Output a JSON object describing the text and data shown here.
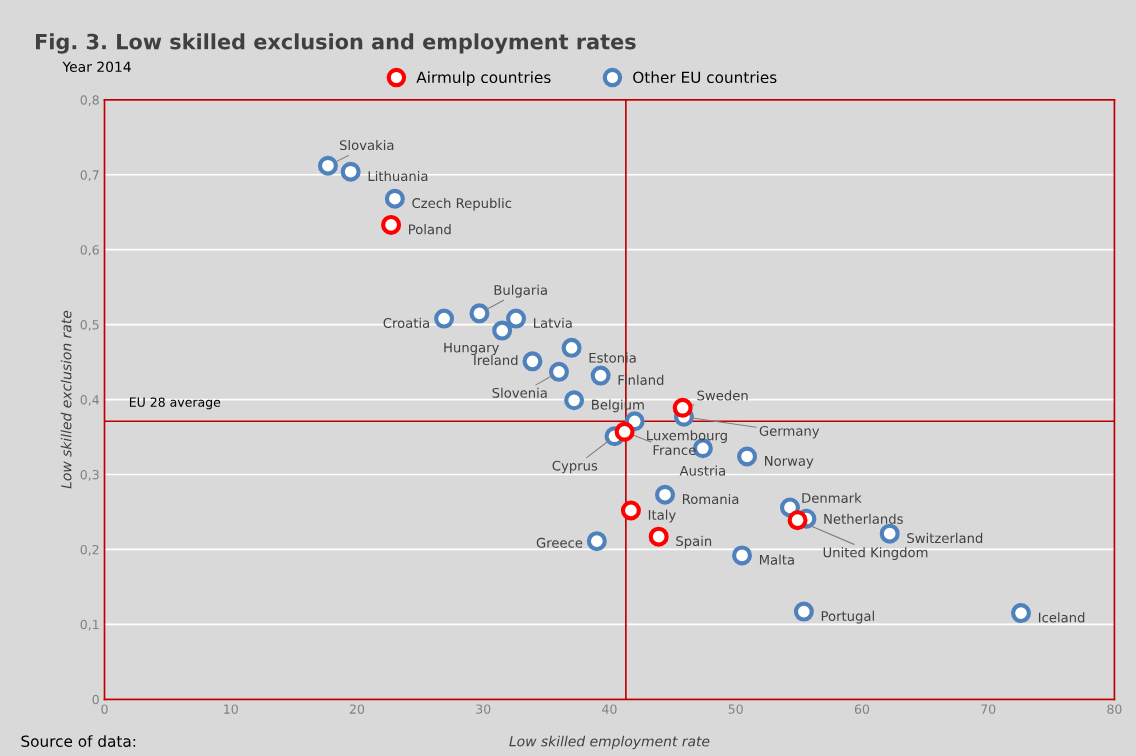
{
  "chart_data": {
    "type": "scatter",
    "title": "Fig. 3. Low skilled exclusion and employment rates",
    "subtitle": "Year 2014",
    "xlabel": "Low skilled employment rate",
    "ylabel": "Low skilled exclusion rate",
    "series": [
      {
        "name": "Airmulp countries",
        "color": "#ff0000",
        "x": [
          22.7,
          45.8,
          41.2,
          41.7,
          43.9,
          54.9
        ],
        "values": [
          0.633,
          0.389,
          0.357,
          0.252,
          0.217,
          0.239
        ]
      },
      {
        "name": "Other EU countries",
        "color": "#4f81bd",
        "x": [
          17.7,
          19.5,
          23.0,
          26.9,
          29.7,
          32.6,
          31.5,
          37.0,
          33.9,
          36.0,
          39.3,
          37.2,
          42.0,
          45.9,
          40.4,
          47.4,
          50.9,
          44.4,
          39.0,
          50.5,
          54.3,
          55.6,
          62.2,
          55.4,
          72.6
        ],
        "values": [
          0.712,
          0.704,
          0.668,
          0.508,
          0.515,
          0.508,
          0.492,
          0.469,
          0.451,
          0.437,
          0.432,
          0.399,
          0.371,
          0.377,
          0.351,
          0.335,
          0.324,
          0.273,
          0.211,
          0.192,
          0.256,
          0.241,
          0.221,
          0.117,
          0.115
        ]
      }
    ],
    "xlim": [
      0,
      80
    ],
    "ylim": [
      0,
      0.8
    ],
    "xticks": [
      0,
      10,
      20,
      30,
      40,
      50,
      60,
      70,
      80
    ],
    "yticks": [
      0,
      {
        "value": 0.1,
        "label": "0,1"
      },
      {
        "value": 0.2,
        "label": "0,2"
      },
      {
        "value": 0.3,
        "label": "0,3"
      },
      {
        "value": 0.4,
        "label": "0,4"
      },
      {
        "value": 0.5,
        "label": "0,5"
      },
      {
        "value": 0.6,
        "label": "0,6"
      },
      {
        "value": 0.7,
        "label": "0,7"
      },
      {
        "value": 0.8,
        "label": "0,8"
      }
    ],
    "ref_lines": [
      {
        "axis": "x",
        "value": 41.3,
        "color": "#c00000"
      },
      {
        "axis": "y",
        "value": 0.371,
        "label": "EU 28 average",
        "color": "#c00000"
      }
    ],
    "grid": "y",
    "legend": "top",
    "marker": "circle",
    "annotations": [
      {
        "text": "Slovakia",
        "x": 17.7,
        "y": 0.712
      },
      {
        "text": "Lithuania",
        "x": 19.5,
        "y": 0.704
      },
      {
        "text": "Czech Republic",
        "x": 23.0,
        "y": 0.668
      },
      {
        "text": "Poland",
        "x": 22.7,
        "y": 0.633
      },
      {
        "text": "Croatia",
        "x": 26.9,
        "y": 0.508
      },
      {
        "text": "Bulgaria",
        "x": 29.7,
        "y": 0.515
      },
      {
        "text": "Latvia",
        "x": 32.6,
        "y": 0.508
      },
      {
        "text": "Hungary",
        "x": 31.5,
        "y": 0.492
      },
      {
        "text": "Estonia",
        "x": 37.0,
        "y": 0.469
      },
      {
        "text": "Ireland",
        "x": 33.9,
        "y": 0.451
      },
      {
        "text": "Slovenia",
        "x": 36.0,
        "y": 0.437
      },
      {
        "text": "Finland",
        "x": 39.3,
        "y": 0.432
      },
      {
        "text": "Belgium",
        "x": 37.2,
        "y": 0.399
      },
      {
        "text": "Sweden",
        "x": 45.8,
        "y": 0.389
      },
      {
        "text": "Luxembourg",
        "x": 42.0,
        "y": 0.371
      },
      {
        "text": "Germany",
        "x": 45.9,
        "y": 0.377
      },
      {
        "text": "France",
        "x": 41.2,
        "y": 0.357
      },
      {
        "text": "Cyprus",
        "x": 40.4,
        "y": 0.351
      },
      {
        "text": "Austria",
        "x": 47.4,
        "y": 0.335
      },
      {
        "text": "Norway",
        "x": 50.9,
        "y": 0.324
      },
      {
        "text": "Romania",
        "x": 44.4,
        "y": 0.273
      },
      {
        "text": "Italy",
        "x": 41.7,
        "y": 0.252
      },
      {
        "text": "Denmark",
        "x": 54.3,
        "y": 0.256
      },
      {
        "text": "Netherlands",
        "x": 55.6,
        "y": 0.241
      },
      {
        "text": "Switzerland",
        "x": 62.2,
        "y": 0.221
      },
      {
        "text": "Spain",
        "x": 43.9,
        "y": 0.217
      },
      {
        "text": "Greece",
        "x": 39.0,
        "y": 0.211
      },
      {
        "text": "United Kingdom",
        "x": 54.9,
        "y": 0.239
      },
      {
        "text": "Malta",
        "x": 50.5,
        "y": 0.192
      },
      {
        "text": "Portugal",
        "x": 55.4,
        "y": 0.117
      },
      {
        "text": "Iceland",
        "x": 72.6,
        "y": 0.115
      },
      "Source of data:"
    ]
  }
}
